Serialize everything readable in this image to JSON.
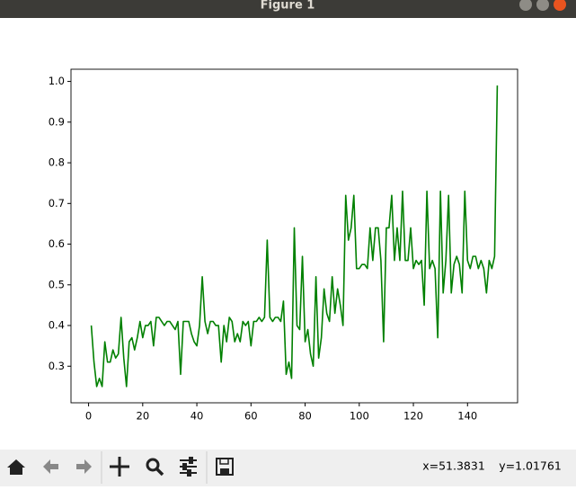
{
  "window": {
    "title": "Figure 1"
  },
  "chart_data": {
    "type": "line",
    "x": [
      1,
      2,
      3,
      4,
      5,
      6,
      7,
      8,
      9,
      10,
      11,
      12,
      13,
      14,
      15,
      16,
      17,
      18,
      19,
      20,
      21,
      22,
      23,
      24,
      25,
      26,
      27,
      28,
      29,
      30,
      31,
      32,
      33,
      34,
      35,
      36,
      37,
      38,
      39,
      40,
      41,
      42,
      43,
      44,
      45,
      46,
      47,
      48,
      49,
      50,
      51,
      52,
      53,
      54,
      55,
      56,
      57,
      58,
      59,
      60,
      61,
      62,
      63,
      64,
      65,
      66,
      67,
      68,
      69,
      70,
      71,
      72,
      73,
      74,
      75,
      76,
      77,
      78,
      79,
      80,
      81,
      82,
      83,
      84,
      85,
      86,
      87,
      88,
      89,
      90,
      91,
      92,
      93,
      94,
      95,
      96,
      97,
      98,
      99,
      100,
      101,
      102,
      103,
      104,
      105,
      106,
      107,
      108,
      109,
      110,
      111,
      112,
      113,
      114,
      115,
      116,
      117,
      118,
      119,
      120,
      121,
      122,
      123,
      124,
      125,
      126,
      127,
      128,
      129,
      130,
      131,
      132,
      133,
      134,
      135,
      136,
      137,
      138,
      139,
      140,
      141,
      142,
      143,
      144,
      145,
      146,
      147,
      148,
      149,
      150,
      151
    ],
    "series": [
      {
        "color": "#008000",
        "values": [
          0.4,
          0.31,
          0.25,
          0.27,
          0.25,
          0.36,
          0.31,
          0.31,
          0.34,
          0.32,
          0.33,
          0.42,
          0.32,
          0.25,
          0.36,
          0.37,
          0.34,
          0.37,
          0.41,
          0.37,
          0.4,
          0.4,
          0.41,
          0.35,
          0.42,
          0.42,
          0.41,
          0.4,
          0.41,
          0.41,
          0.4,
          0.39,
          0.41,
          0.28,
          0.41,
          0.41,
          0.41,
          0.38,
          0.36,
          0.35,
          0.4,
          0.52,
          0.41,
          0.38,
          0.41,
          0.41,
          0.4,
          0.4,
          0.31,
          0.4,
          0.36,
          0.42,
          0.41,
          0.36,
          0.38,
          0.36,
          0.41,
          0.4,
          0.41,
          0.35,
          0.41,
          0.41,
          0.42,
          0.41,
          0.42,
          0.61,
          0.42,
          0.41,
          0.42,
          0.42,
          0.41,
          0.46,
          0.28,
          0.31,
          0.27,
          0.64,
          0.4,
          0.39,
          0.57,
          0.36,
          0.39,
          0.33,
          0.3,
          0.52,
          0.32,
          0.37,
          0.49,
          0.43,
          0.41,
          0.52,
          0.43,
          0.49,
          0.45,
          0.4,
          0.72,
          0.61,
          0.64,
          0.72,
          0.54,
          0.54,
          0.55,
          0.55,
          0.54,
          0.64,
          0.56,
          0.64,
          0.64,
          0.56,
          0.36,
          0.64,
          0.64,
          0.72,
          0.56,
          0.64,
          0.56,
          0.73,
          0.56,
          0.56,
          0.64,
          0.54,
          0.56,
          0.55,
          0.56,
          0.45,
          0.73,
          0.54,
          0.56,
          0.54,
          0.37,
          0.73,
          0.48,
          0.56,
          0.72,
          0.48,
          0.55,
          0.57,
          0.55,
          0.48,
          0.73,
          0.56,
          0.54,
          0.57,
          0.57,
          0.54,
          0.56,
          0.54,
          0.48,
          0.56,
          0.54,
          0.57,
          0.99
        ]
      }
    ],
    "xlim": [
      -6.5,
      158.5
    ],
    "xticks": [
      0,
      20,
      40,
      60,
      80,
      100,
      120,
      140
    ],
    "ylim": [
      0.21,
      1.03
    ],
    "yticks": [
      0.3,
      0.4,
      0.5,
      0.6,
      0.7,
      0.8,
      0.9,
      {
        "value": 1,
        "label": "1.0"
      }
    ]
  },
  "status": {
    "x": "x=51.3831",
    "y": "y=1.01761"
  }
}
